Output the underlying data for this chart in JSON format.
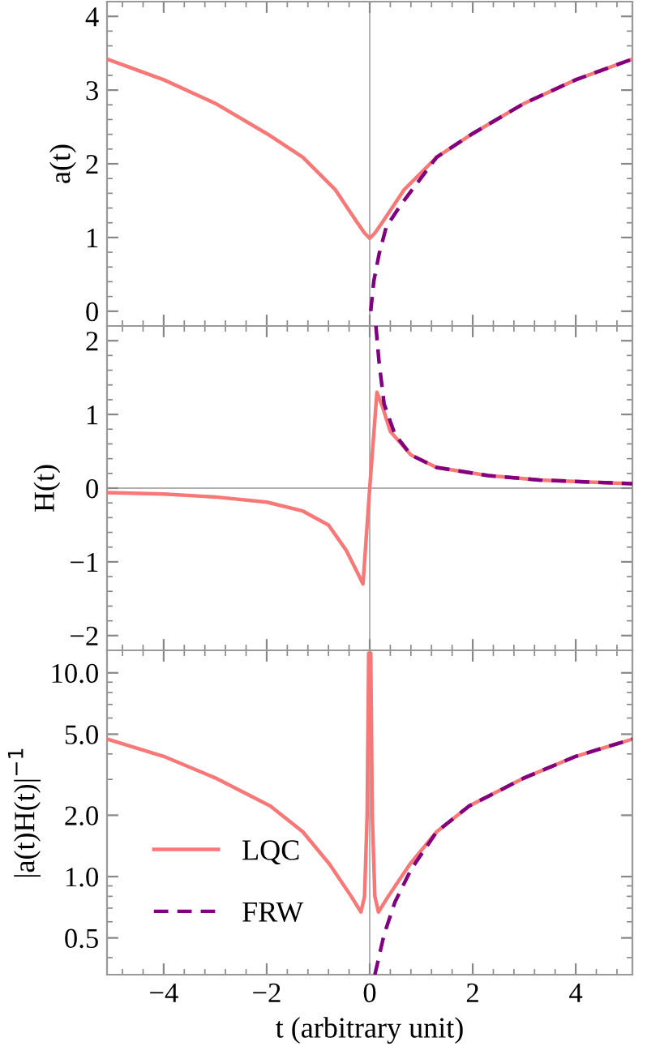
{
  "chart_data": [
    {
      "type": "line",
      "ylabel": "a(t)",
      "xlim": [
        -5.1,
        5.1
      ],
      "xticks": [
        -4,
        -2,
        0,
        2,
        4
      ],
      "ylim": [
        -0.2,
        4.2
      ],
      "yticks": [
        0,
        1,
        2,
        3,
        4
      ],
      "tick_labels": "y",
      "grid": false,
      "legend": false,
      "ref_lines": [
        {
          "axis": "x",
          "value": 0,
          "color": "#b0b0b0"
        }
      ],
      "series": [
        {
          "color": "#f87878",
          "line_style": "solid",
          "x": [
            -5.1,
            -4,
            -3,
            -2,
            -1.3,
            -0.67,
            -0.25,
            -0.1,
            0,
            0.1,
            0.25,
            0.67,
            1.3,
            2,
            3,
            4,
            5.1
          ],
          "values": [
            3.42,
            3.14,
            2.82,
            2.41,
            2.09,
            1.65,
            1.21,
            1.06,
            0.99,
            1.06,
            1.21,
            1.65,
            2.09,
            2.41,
            2.82,
            3.14,
            3.42
          ]
        },
        {
          "color": "#800080",
          "line_style": "dashed",
          "x": [
            0.02,
            0.08,
            0.18,
            0.32,
            0.59,
            1.3,
            2,
            3,
            4,
            5.1
          ],
          "values": [
            0,
            0.41,
            0.77,
            1.14,
            1.43,
            2.09,
            2.41,
            2.82,
            3.14,
            3.42
          ]
        }
      ]
    },
    {
      "type": "line",
      "ylabel": "H(t)",
      "xlim": [
        -5.1,
        5.1
      ],
      "xticks": [
        -4,
        -2,
        0,
        2,
        4
      ],
      "ylim": [
        -2.2,
        2.2
      ],
      "yticks": [
        -2,
        -1,
        0,
        1,
        2
      ],
      "tick_labels": "y",
      "grid": false,
      "legend": false,
      "ref_lines": [
        {
          "axis": "x",
          "value": 0,
          "color": "#b0b0b0"
        },
        {
          "axis": "y",
          "value": 0,
          "color": "#b0b0b0"
        }
      ],
      "series": [
        {
          "color": "#f87878",
          "line_style": "solid",
          "x": [
            -5.1,
            -4,
            -3,
            -2,
            -1.3,
            -0.8,
            -0.46,
            -0.25,
            -0.13,
            0,
            0.14,
            0.25,
            0.4,
            0.8,
            1.3,
            2.3,
            3.3,
            5.1
          ],
          "values": [
            -0.06,
            -0.08,
            -0.12,
            -0.19,
            -0.31,
            -0.5,
            -0.84,
            -1.13,
            -1.3,
            0,
            1.3,
            1.1,
            0.77,
            0.45,
            0.28,
            0.17,
            0.11,
            0.06
          ]
        },
        {
          "color": "#800080",
          "line_style": "dashed",
          "x": [
            0.12,
            0.18,
            0.28,
            0.49,
            0.8,
            1.3,
            2.3,
            3.3,
            5.1
          ],
          "values": [
            2.2,
            1.72,
            1.14,
            0.73,
            0.45,
            0.28,
            0.17,
            0.11,
            0.06
          ]
        }
      ]
    },
    {
      "type": "line",
      "ylabel": "|a(t)H(t)|$^{−1}$",
      "xlabel": "t (arbitrary unit)",
      "log": "y",
      "xlim": [
        -5.1,
        5.1
      ],
      "xticks": [
        {
          "value": -4,
          "label": "−4"
        },
        {
          "value": -2,
          "label": "−2"
        },
        0,
        2,
        4
      ],
      "ylim": [
        0.33,
        12.9
      ],
      "yticks": [
        0.5,
        {
          "value": 1,
          "label": "1.0"
        },
        {
          "value": 2,
          "label": "2.0"
        },
        {
          "value": 5,
          "label": "5.0"
        },
        {
          "value": 10,
          "label": "10.0"
        }
      ],
      "grid": false,
      "legend": "bottom left",
      "ref_lines": [
        {
          "axis": "x",
          "value": 0,
          "color": "#b0b0b0"
        }
      ],
      "series": [
        {
          "name": "LQC",
          "color": "#f87878",
          "line_style": "solid",
          "x": [
            -5.1,
            -4,
            -3,
            -1.93,
            -1.3,
            -0.78,
            -0.36,
            -0.17,
            -0.1,
            -0.05,
            -0.02,
            0.02,
            0.05,
            0.1,
            0.17,
            0.36,
            0.78,
            1.3,
            1.93,
            3,
            4,
            5.1
          ],
          "values": [
            4.73,
            3.89,
            3.05,
            2.22,
            1.66,
            1.15,
            0.8,
            0.67,
            0.8,
            2.0,
            12.5,
            12.5,
            2.0,
            0.8,
            0.67,
            0.8,
            1.15,
            1.66,
            2.22,
            3.05,
            3.89,
            4.73
          ]
        },
        {
          "name": "FRW",
          "color": "#800080",
          "line_style": "dashed",
          "x": [
            0.1,
            0.28,
            0.49,
            0.8,
            1.3,
            1.93,
            3,
            4,
            5.1
          ],
          "values": [
            0.33,
            0.52,
            0.75,
            1.08,
            1.66,
            2.22,
            3.05,
            3.89,
            4.73
          ]
        }
      ]
    }
  ]
}
